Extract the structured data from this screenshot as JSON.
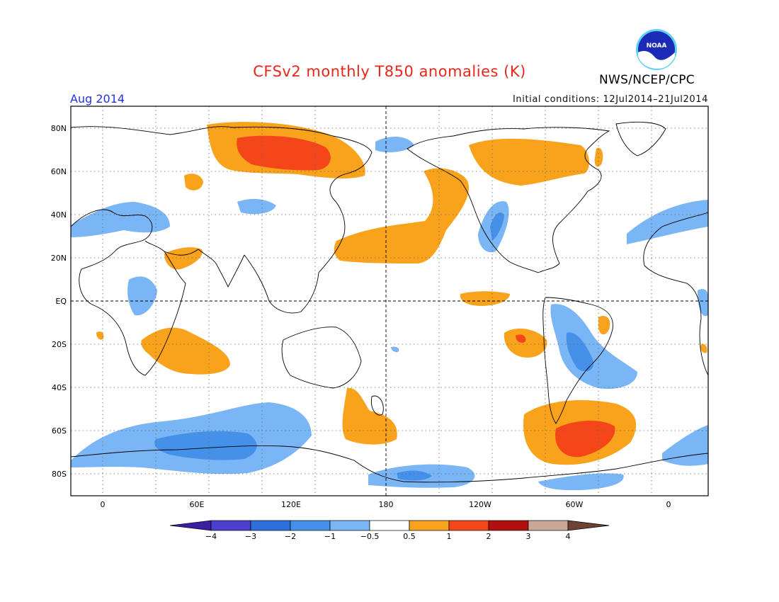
{
  "header": {
    "title": "CFSv2 monthly T850 anomalies (K)",
    "month": "Aug 2014",
    "initial_conditions": "Initial conditions: 12Jul2014–21Jul2014",
    "agency": "NWS/NCEP/CPC",
    "logo_text": "NOAA"
  },
  "map": {
    "lat_labels": [
      "80N",
      "60N",
      "40N",
      "20N",
      "EQ",
      "20S",
      "40S",
      "60S",
      "80S"
    ],
    "lon_labels": [
      "0",
      "60E",
      "120E",
      "180",
      "120W",
      "60W",
      "0"
    ]
  },
  "colorbar": {
    "labels": [
      "−4",
      "−3",
      "−2",
      "−1",
      "−0.5",
      "0.5",
      "1",
      "2",
      "3",
      "4"
    ],
    "colors": [
      "#3a1fa0",
      "#4a3fcf",
      "#2c6fdd",
      "#4591ea",
      "#7ab6f5",
      "#ffffff",
      "#f9a21b",
      "#f5461a",
      "#b20f0f",
      "#c9a898",
      "#6b4233"
    ]
  },
  "colors": {
    "warm_05": "#f9a21b",
    "warm_1": "#f5461a",
    "cool_05": "#7ab6f5",
    "cool_1": "#4591ea",
    "cool_2": "#2c6fdd"
  }
}
